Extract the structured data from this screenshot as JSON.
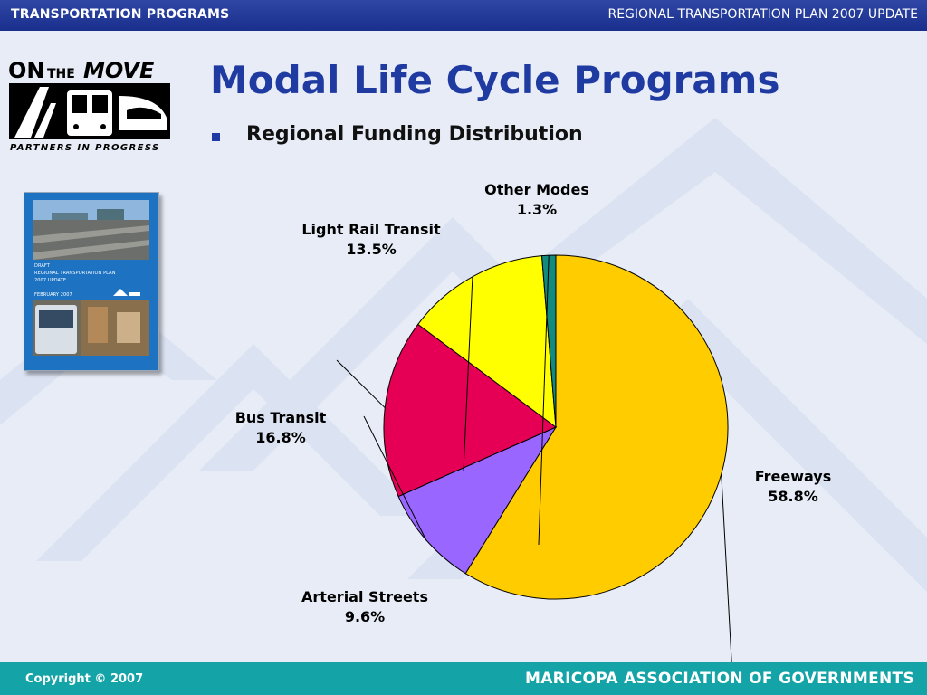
{
  "header": {
    "left": "TRANSPORTATION PROGRAMS",
    "right": "REGIONAL TRANSPORTATION PLAN 2007 UPDATE"
  },
  "logo": {
    "line1": "ON",
    "line2": "THE",
    "line3": "MOVE",
    "tagline": "PARTNERS IN PROGRESS"
  },
  "page": {
    "title": "Modal Life Cycle Programs",
    "bullet": "Regional Funding Distribution"
  },
  "cover": {
    "lines": [
      "DRAFT",
      "REGIONAL TRANSPORTATION PLAN",
      "2007 UPDATE",
      "",
      "FEBRUARY 2007"
    ]
  },
  "colors": {
    "header": "#1f3590",
    "title": "#1f3aa0",
    "footer": "#14a3a6"
  },
  "chart_data": {
    "type": "pie",
    "series": [
      {
        "name": "Freeways",
        "label": "58.8%",
        "value": 58.8,
        "color": "#ffcc00"
      },
      {
        "name": "Arterial Streets",
        "label": "9.6%",
        "value": 9.6,
        "color": "#9966ff"
      },
      {
        "name": "Bus Transit",
        "label": "16.8%",
        "value": 16.8,
        "color": "#e60055"
      },
      {
        "name": "Light Rail Transit",
        "label": "13.5%",
        "value": 13.5,
        "color": "#ffff00"
      },
      {
        "name": "Other Modes",
        "label": "1.3%",
        "value": 1.3,
        "color": "#128a7d"
      }
    ],
    "start": "12 o'clock",
    "direction": "clockwise",
    "legend": "none"
  },
  "footer": {
    "copyright": "Copyright © 2007",
    "org": "MARICOPA ASSOCIATION OF GOVERNMENTS"
  }
}
